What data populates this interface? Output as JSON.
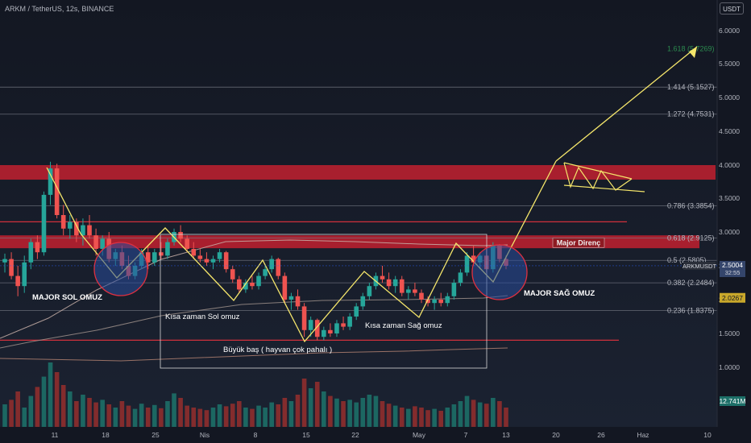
{
  "header": {
    "symbol_title": "ARKM / TetherUS, 12s, BINANCE",
    "currency_badge": "USDT"
  },
  "colors": {
    "background": "#131722",
    "up_candle": "#26a69a",
    "down_candle": "#ef5350",
    "drawing": "#f5e66b",
    "resistance_zone": "#c2202f",
    "fib_line": "#787b86",
    "price_label": "#2962ff",
    "volume_up": "#1d6f68",
    "volume_down": "#8f2e2e",
    "ma_line": "#c9a7a0"
  },
  "chart_data": {
    "type": "candlestick",
    "symbol": "ARKMUSDT",
    "exchange": "BINANCE",
    "timeframe": "12s",
    "y_axis": {
      "ticks": [
        1.0,
        1.5,
        2.0,
        2.5,
        3.0,
        3.5,
        4.0,
        4.5,
        5.0,
        5.5,
        6.0
      ],
      "tick_labels": [
        "1.0000",
        "1.5000",
        "2.0000",
        "2.5000",
        "3.0000",
        "3.5000",
        "4.0000",
        "4.5000",
        "5.0000",
        "5.5000",
        "6.0000"
      ],
      "ylim": [
        0.75,
        6.2
      ]
    },
    "x_axis": {
      "tick_labels": [
        "11",
        "18",
        "25",
        "Nis",
        "8",
        "15",
        "22",
        "May",
        "7",
        "13",
        "20",
        "26",
        "Haz",
        "10"
      ]
    },
    "current_price": {
      "symbol_label": "ARKMUSDT",
      "value": "2.5004",
      "countdown": "32:55"
    },
    "moving_average_label": "2.0267",
    "volume_label": "12.741M",
    "fib_levels": [
      {
        "ratio": "0.236",
        "price": 1.8375,
        "label": "0.236 (1.8375)"
      },
      {
        "ratio": "0.382",
        "price": 2.2484,
        "label": "0.382 (2.2484)"
      },
      {
        "ratio": "0.5",
        "price": 2.5805,
        "label": "0.5 (2.5805)"
      },
      {
        "ratio": "0.618",
        "price": 2.9125,
        "label": "0.618 (2.9125)"
      },
      {
        "ratio": "0.786",
        "price": 3.3854,
        "label": "0.786 (3.3854)"
      },
      {
        "ratio": "1.272",
        "price": 4.7531,
        "label": "1.272 (4.7531)"
      },
      {
        "ratio": "1.414",
        "price": 5.1527,
        "label": "1.414 (5.1527)"
      },
      {
        "ratio": "1.618",
        "price": 5.7269,
        "label": "1.618 (5.7269)"
      }
    ],
    "zones": [
      {
        "name": "upper-resistance",
        "low": 3.78,
        "high": 4.0
      },
      {
        "name": "major-resistance",
        "low": 2.76,
        "high": 2.95,
        "label": "Major Direnç"
      }
    ],
    "horizontal_lines": [
      3.15,
      1.4
    ],
    "annotations": [
      {
        "text": "MAJOR SOL OMUZ"
      },
      {
        "text": "Kısa zaman Sol omuz"
      },
      {
        "text": "Büyük baş ( hayvan çok pahalı )"
      },
      {
        "text": "Kısa zaman Sağ omuz"
      },
      {
        "text": "MAJOR SAĞ OMUZ"
      },
      {
        "text": "Major Direnç"
      }
    ],
    "candles": [
      [
        2.55,
        2.68,
        2.4,
        2.6
      ],
      [
        2.6,
        2.7,
        2.3,
        2.35
      ],
      [
        2.35,
        2.5,
        2.05,
        2.2
      ],
      [
        2.2,
        2.65,
        2.1,
        2.55
      ],
      [
        2.55,
        2.9,
        2.45,
        2.85
      ],
      [
        2.85,
        2.95,
        2.6,
        2.7
      ],
      [
        2.7,
        3.6,
        2.65,
        3.55
      ],
      [
        3.55,
        4.05,
        3.4,
        3.95
      ],
      [
        3.95,
        4.02,
        3.2,
        3.25
      ],
      [
        3.25,
        3.4,
        2.95,
        3.05
      ],
      [
        3.05,
        3.25,
        2.9,
        3.15
      ],
      [
        3.15,
        3.2,
        2.85,
        2.95
      ],
      [
        2.95,
        3.2,
        2.8,
        3.1
      ],
      [
        3.1,
        3.25,
        2.9,
        2.95
      ],
      [
        2.95,
        3.05,
        2.65,
        2.75
      ],
      [
        2.75,
        2.95,
        2.65,
        2.9
      ],
      [
        2.9,
        3.0,
        2.55,
        2.6
      ],
      [
        2.6,
        2.75,
        2.5,
        2.7
      ],
      [
        2.7,
        2.8,
        2.45,
        2.5
      ],
      [
        2.5,
        2.65,
        2.3,
        2.35
      ],
      [
        2.35,
        2.55,
        2.3,
        2.5
      ],
      [
        2.5,
        2.75,
        2.45,
        2.7
      ],
      [
        2.7,
        2.8,
        2.45,
        2.55
      ],
      [
        2.55,
        2.75,
        2.5,
        2.7
      ],
      [
        2.7,
        2.85,
        2.6,
        2.65
      ],
      [
        2.65,
        2.9,
        2.6,
        2.85
      ],
      [
        2.85,
        3.05,
        2.8,
        3.0
      ],
      [
        3.0,
        3.1,
        2.85,
        2.9
      ],
      [
        2.9,
        2.95,
        2.7,
        2.75
      ],
      [
        2.75,
        2.85,
        2.6,
        2.65
      ],
      [
        2.65,
        2.75,
        2.55,
        2.6
      ],
      [
        2.6,
        2.7,
        2.5,
        2.55
      ],
      [
        2.55,
        2.65,
        2.45,
        2.6
      ],
      [
        2.6,
        2.75,
        2.55,
        2.7
      ],
      [
        2.7,
        2.72,
        2.4,
        2.45
      ],
      [
        2.45,
        2.5,
        2.25,
        2.3
      ],
      [
        2.3,
        2.35,
        2.1,
        2.15
      ],
      [
        2.15,
        2.3,
        2.1,
        2.25
      ],
      [
        2.25,
        2.35,
        2.15,
        2.2
      ],
      [
        2.2,
        2.4,
        2.15,
        2.35
      ],
      [
        2.35,
        2.5,
        2.3,
        2.45
      ],
      [
        2.45,
        2.65,
        2.4,
        2.6
      ],
      [
        2.6,
        2.62,
        2.3,
        2.35
      ],
      [
        2.35,
        2.4,
        1.95,
        2.0
      ],
      [
        2.0,
        2.1,
        1.85,
        2.05
      ],
      [
        2.05,
        2.15,
        1.85,
        1.9
      ],
      [
        1.9,
        1.95,
        1.45,
        1.55
      ],
      [
        1.55,
        1.75,
        1.45,
        1.7
      ],
      [
        1.7,
        1.72,
        1.4,
        1.45
      ],
      [
        1.45,
        1.6,
        1.4,
        1.55
      ],
      [
        1.55,
        1.65,
        1.45,
        1.5
      ],
      [
        1.5,
        1.7,
        1.45,
        1.65
      ],
      [
        1.65,
        1.75,
        1.55,
        1.6
      ],
      [
        1.6,
        1.8,
        1.55,
        1.75
      ],
      [
        1.75,
        1.95,
        1.7,
        1.9
      ],
      [
        1.9,
        2.1,
        1.85,
        2.05
      ],
      [
        2.05,
        2.25,
        2.0,
        2.2
      ],
      [
        2.2,
        2.4,
        2.15,
        2.35
      ],
      [
        2.35,
        2.5,
        2.25,
        2.3
      ],
      [
        2.3,
        2.4,
        2.15,
        2.2
      ],
      [
        2.2,
        2.35,
        2.1,
        2.3
      ],
      [
        2.3,
        2.35,
        2.05,
        2.1
      ],
      [
        2.1,
        2.2,
        2.0,
        2.15
      ],
      [
        2.15,
        2.25,
        2.05,
        2.1
      ],
      [
        2.1,
        2.15,
        1.95,
        2.0
      ],
      [
        2.0,
        2.05,
        1.9,
        1.95
      ],
      [
        1.95,
        2.05,
        1.85,
        2.0
      ],
      [
        2.0,
        2.1,
        1.9,
        1.95
      ],
      [
        1.95,
        2.1,
        1.9,
        2.05
      ],
      [
        2.05,
        2.3,
        2.0,
        2.25
      ],
      [
        2.25,
        2.45,
        2.2,
        2.4
      ],
      [
        2.4,
        2.7,
        2.35,
        2.65
      ],
      [
        2.65,
        2.8,
        2.5,
        2.55
      ],
      [
        2.55,
        2.7,
        2.45,
        2.65
      ],
      [
        2.65,
        2.75,
        2.4,
        2.45
      ],
      [
        2.45,
        2.85,
        2.4,
        2.8
      ],
      [
        2.8,
        2.82,
        2.55,
        2.6
      ],
      [
        2.6,
        2.65,
        2.45,
        2.5
      ]
    ],
    "volumes": [
      0.35,
      0.42,
      0.55,
      0.3,
      0.48,
      0.62,
      0.78,
      1.0,
      0.85,
      0.65,
      0.55,
      0.4,
      0.5,
      0.45,
      0.38,
      0.42,
      0.35,
      0.3,
      0.4,
      0.33,
      0.28,
      0.36,
      0.3,
      0.34,
      0.29,
      0.4,
      0.52,
      0.45,
      0.33,
      0.3,
      0.28,
      0.26,
      0.3,
      0.35,
      0.32,
      0.36,
      0.4,
      0.3,
      0.28,
      0.33,
      0.3,
      0.38,
      0.35,
      0.45,
      0.4,
      0.5,
      0.75,
      0.6,
      0.7,
      0.55,
      0.48,
      0.44,
      0.4,
      0.42,
      0.38,
      0.45,
      0.5,
      0.48,
      0.4,
      0.36,
      0.33,
      0.3,
      0.28,
      0.32,
      0.3,
      0.26,
      0.28,
      0.25,
      0.3,
      0.35,
      0.4,
      0.48,
      0.42,
      0.38,
      0.36,
      0.45,
      0.4,
      0.3
    ]
  }
}
